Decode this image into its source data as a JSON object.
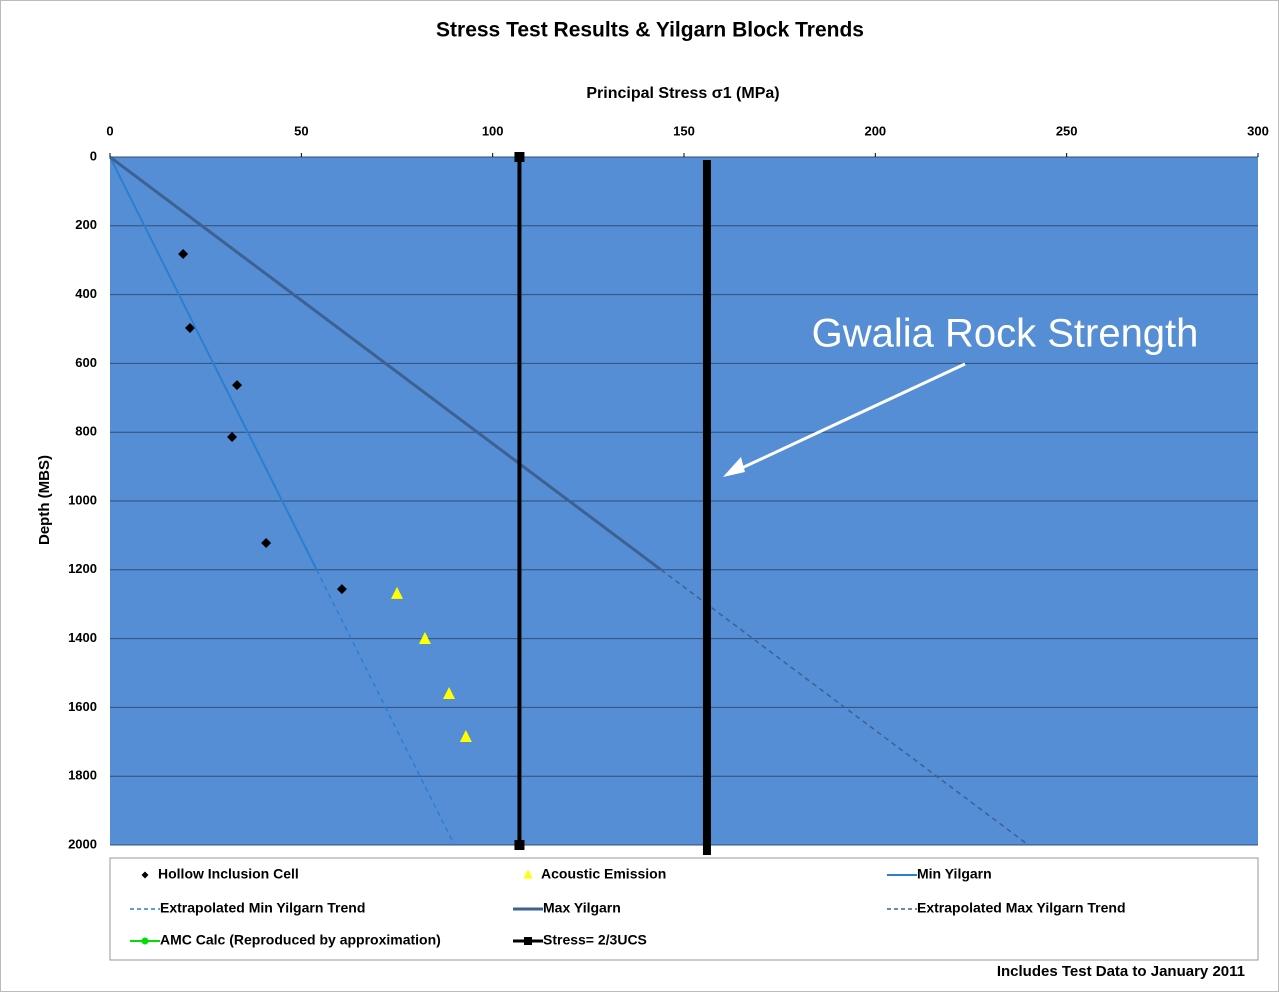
{
  "chart_data": {
    "type": "scatter",
    "title": "Stress Test Results & Yilgarn Block Trends",
    "x_label": "Principal Stress  σ1 (MPa)",
    "y_label": "Depth (MBS)",
    "footnote": "Includes Test Data to January 2011",
    "xlim": [
      0,
      300
    ],
    "xticks": [
      0,
      50,
      100,
      150,
      200,
      250,
      300
    ],
    "ylim": [
      0,
      2000
    ],
    "yticks": [
      0,
      200,
      400,
      600,
      800,
      1000,
      1200,
      1400,
      1600,
      1800,
      2000
    ],
    "y_inverted": true,
    "x_axis_position": "top",
    "grid": true,
    "plot_background": "#558ed5",
    "legend": "bottom",
    "series": [
      {
        "name": "Hollow Inclusion Cell",
        "color": "#000000",
        "marker": "diamond",
        "line": false,
        "x": [
          19.1,
          20.9,
          33.2,
          31.9,
          40.8,
          60.6
        ],
        "y": [
          282,
          497,
          663,
          814,
          1122,
          1256
        ]
      },
      {
        "name": "Acoustic Emission",
        "color": "#ffff00",
        "marker": "triangle",
        "line": false,
        "x": [
          75,
          82.3,
          88.6,
          93
        ],
        "y": [
          1270,
          1401,
          1561,
          1686
        ]
      },
      {
        "name": "Min Yilgarn",
        "color": "#2a7fd0",
        "marker": "none",
        "line": true,
        "dash": false,
        "line_width": 2,
        "x": [
          0,
          54
        ],
        "y": [
          0,
          1200
        ]
      },
      {
        "name": "Extrapolated Min Yilgarn Trend",
        "color": "#2a7fd0",
        "marker": "none",
        "line": true,
        "dash": true,
        "line_width": 1.5,
        "x": [
          54,
          90
        ],
        "y": [
          1200,
          2000
        ]
      },
      {
        "name": "Max Yilgarn",
        "color": "#3d6193",
        "marker": "none",
        "line": true,
        "dash": false,
        "line_width": 3,
        "x": [
          0,
          144
        ],
        "y": [
          0,
          1200
        ]
      },
      {
        "name": "Extrapolated Max Yilgarn Trend",
        "color": "#3d6193",
        "marker": "none",
        "line": true,
        "dash": true,
        "line_width": 1.5,
        "x": [
          144,
          240
        ],
        "y": [
          1200,
          2000
        ]
      },
      {
        "name": "AMC Calc (Reproduced by approximation)",
        "color": "#00e000",
        "marker": "circle",
        "line": true,
        "dash": false,
        "line_width": 2,
        "x": [],
        "y": []
      },
      {
        "name": "Stress= 2/3UCS",
        "color": "#000000",
        "marker": "square",
        "line": true,
        "dash": false,
        "line_width": 4,
        "x": [
          107,
          107
        ],
        "y": [
          0,
          2000
        ]
      }
    ],
    "reference_lines": [
      {
        "x": 156,
        "label": "Gwalia Rock Strength",
        "color": "#000000"
      }
    ]
  }
}
